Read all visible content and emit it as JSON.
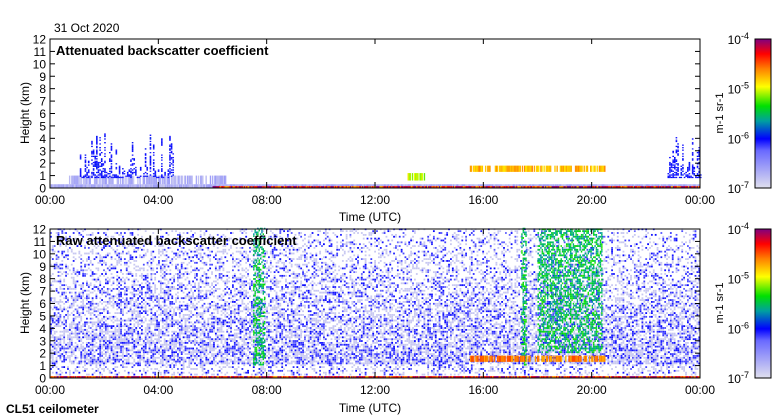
{
  "date_label": "31 Oct 2020",
  "instrument_label": "CL51 ceilometer",
  "chart_data": [
    {
      "type": "heatmap",
      "title": "Attenuated backscatter coefficient",
      "xlabel": "Time (UTC)",
      "ylabel": "Height (km)",
      "xlim": [
        0,
        24
      ],
      "ylim": [
        0,
        12
      ],
      "xticks": [
        "00:00",
        "04:00",
        "08:00",
        "12:00",
        "16:00",
        "20:00",
        "00:00"
      ],
      "yticks": [
        "0",
        "1",
        "2",
        "3",
        "4",
        "5",
        "6",
        "7",
        "8",
        "9",
        "10",
        "11",
        "12"
      ],
      "colorbar": {
        "label": "m-1 sr-1",
        "scale": "log",
        "range": [
          1e-07,
          0.0001
        ],
        "ticks": [
          "10-7",
          "10-6",
          "10-5",
          "10-4"
        ]
      },
      "features": [
        {
          "kind": "surface-layer",
          "t": [
            0,
            24
          ],
          "z": [
            0,
            0.3
          ],
          "level": 0.05
        },
        {
          "kind": "aerosol",
          "t": [
            0.7,
            6.5
          ],
          "z": [
            0.3,
            1.0
          ],
          "level": 0.05
        },
        {
          "kind": "columns",
          "t": [
            1.1,
            4.6
          ],
          "z_top_max": 6.5,
          "level": 0.3
        },
        {
          "kind": "columns",
          "t": [
            22.8,
            24
          ],
          "z_top_max": 6.0,
          "level": 0.3
        },
        {
          "kind": "cloud-layer",
          "t": [
            15.5,
            20.5
          ],
          "z": [
            1.3,
            1.8
          ],
          "level": 0.7
        },
        {
          "kind": "cloud-patch",
          "t": [
            13.2,
            13.8
          ],
          "z": [
            0.6,
            1.2
          ],
          "level": 0.6
        },
        {
          "kind": "surface-strong",
          "t": [
            6.0,
            24
          ],
          "z": [
            0,
            0.15
          ],
          "level": 0.9
        }
      ]
    },
    {
      "type": "heatmap",
      "title": "Raw attenuated backscatter coefficient",
      "xlabel": "Time (UTC)",
      "ylabel": "Height (km)",
      "xlim": [
        0,
        24
      ],
      "ylim": [
        0,
        12
      ],
      "xticks": [
        "00:00",
        "04:00",
        "08:00",
        "12:00",
        "16:00",
        "20:00",
        "00:00"
      ],
      "yticks": [
        "0",
        "1",
        "2",
        "3",
        "4",
        "5",
        "6",
        "7",
        "8",
        "9",
        "10",
        "11",
        "12"
      ],
      "colorbar": {
        "label": "m-1 sr-1",
        "scale": "log",
        "range": [
          1e-07,
          0.0001
        ],
        "ticks": [
          "10-7",
          "10-6",
          "10-5",
          "10-4"
        ]
      },
      "features": [
        {
          "kind": "noise",
          "t": [
            0,
            24
          ],
          "z": [
            0,
            12
          ],
          "level": 0.25
        },
        {
          "kind": "column",
          "t": [
            7.5,
            7.9
          ],
          "z": [
            1,
            12
          ],
          "level": 0.5
        },
        {
          "kind": "column",
          "t": [
            17.4,
            17.6
          ],
          "z": [
            1,
            12
          ],
          "level": 0.5
        },
        {
          "kind": "column",
          "t": [
            18.0,
            20.4
          ],
          "z": [
            2,
            12
          ],
          "level": 0.5
        },
        {
          "kind": "cloud-layer",
          "t": [
            15.5,
            20.5
          ],
          "z": [
            1.3,
            1.8
          ],
          "level": 0.75
        },
        {
          "kind": "surface-strong",
          "t": [
            0,
            24
          ],
          "z": [
            0,
            0.15
          ],
          "level": 0.9
        }
      ]
    }
  ]
}
